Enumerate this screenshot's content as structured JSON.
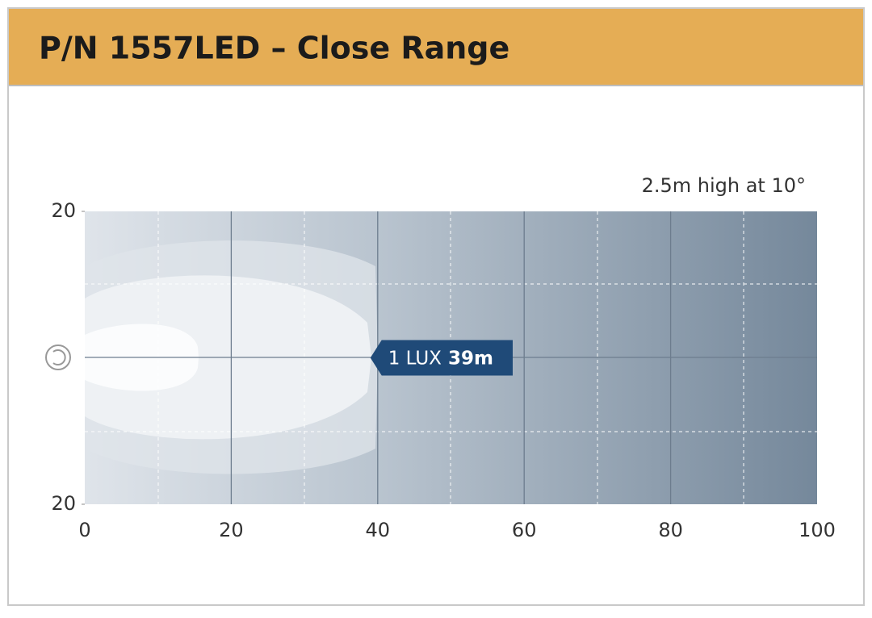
{
  "chart_data": {
    "type": "beam",
    "title": "P/N 1557LED – Close Range",
    "annotation": "2.5m high at 10°",
    "xlim": [
      0,
      100
    ],
    "xticks": [
      0,
      20,
      40,
      60,
      80,
      100
    ],
    "ylim": [
      -20,
      20
    ],
    "yticks": [
      {
        "value": 20,
        "label": "20"
      },
      {
        "value": -20,
        "label": "20"
      }
    ],
    "marker": {
      "label": "1 LUX",
      "value": 39,
      "value_label": "39m"
    }
  }
}
